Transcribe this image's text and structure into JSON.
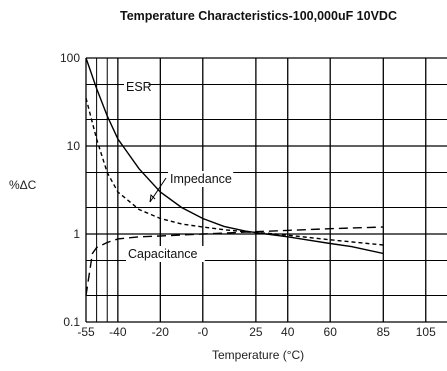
{
  "chart_data": {
    "type": "line",
    "title": "Temperature Characteristics-100,000uF 10VDC",
    "xlabel": "Temperature (°C)",
    "ylabel": "%ΔC",
    "y_scale": "log",
    "ylim": [
      0.1,
      100
    ],
    "xlim": [
      -55,
      115
    ],
    "x_ticks": [
      "-55",
      "-40",
      "-20",
      "-0",
      "25",
      "40",
      "60",
      "85",
      "105"
    ],
    "y_ticks": [
      "100",
      "10",
      "1",
      "0.1"
    ],
    "grid": true,
    "series": [
      {
        "name": "ESR",
        "style": "solid",
        "x": [
          -55,
          -50,
          -45,
          -40,
          -30,
          -20,
          -10,
          0,
          10,
          20,
          30,
          40,
          50,
          60,
          70,
          85
        ],
        "values": [
          100,
          45,
          22,
          12,
          5.5,
          3.0,
          2.0,
          1.5,
          1.22,
          1.08,
          1.0,
          0.93,
          0.85,
          0.78,
          0.72,
          0.6
        ]
      },
      {
        "name": "Impedance",
        "style": "short-dash",
        "x": [
          -55,
          -50,
          -45,
          -40,
          -30,
          -20,
          -10,
          0,
          10,
          20,
          30,
          40,
          60,
          85
        ],
        "values": [
          35,
          12,
          5.0,
          3.0,
          1.9,
          1.5,
          1.3,
          1.2,
          1.12,
          1.06,
          1.02,
          0.97,
          0.86,
          0.75
        ]
      },
      {
        "name": "Capacitance",
        "style": "long-dash",
        "x": [
          -55,
          -52,
          -50,
          -45,
          -40,
          -30,
          -20,
          0,
          20,
          40,
          60,
          85
        ],
        "values": [
          0.2,
          0.6,
          0.7,
          0.8,
          0.88,
          0.93,
          0.95,
          1.0,
          1.05,
          1.1,
          1.15,
          1.2
        ]
      }
    ],
    "annotations": [
      "ESR",
      "Impedance",
      "Capacitance"
    ]
  }
}
